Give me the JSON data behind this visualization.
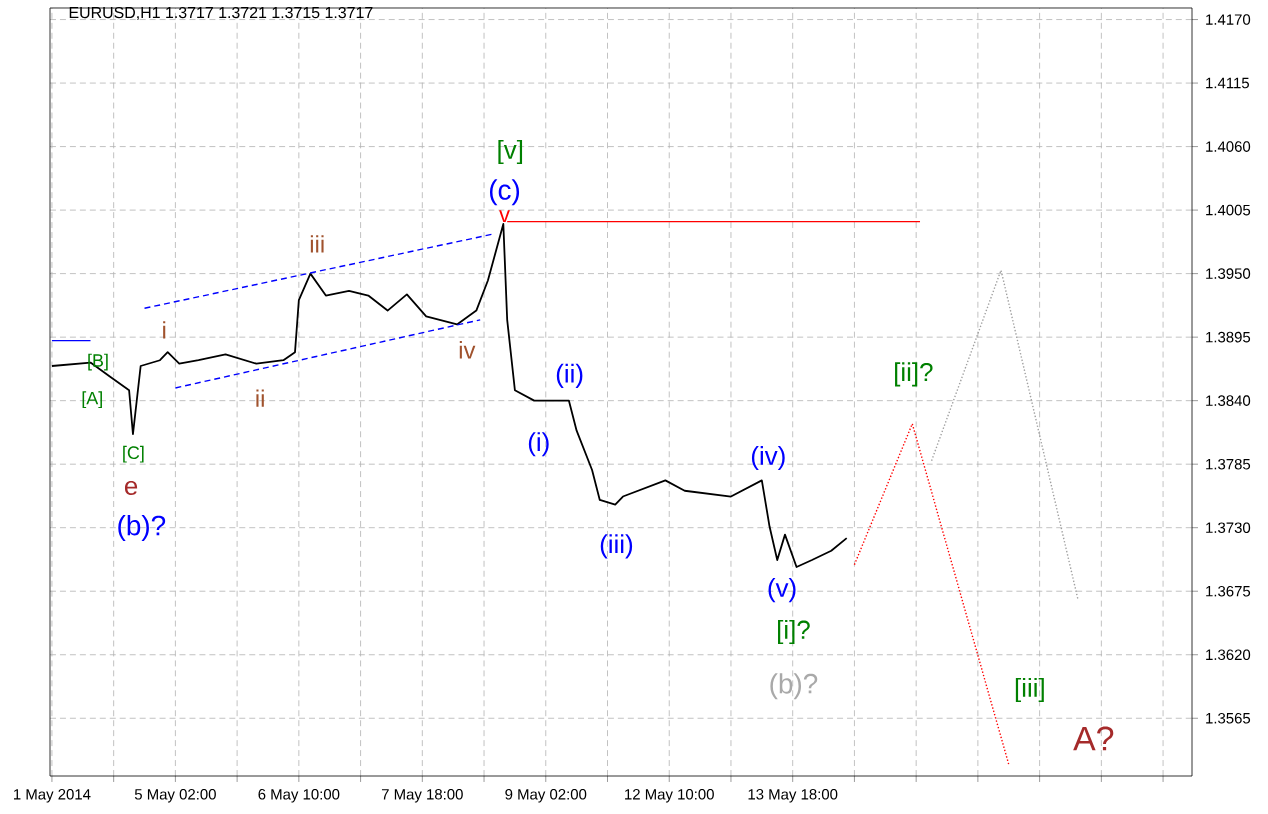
{
  "chart_data": {
    "type": "line",
    "title": "EURUSD,H1  1.3717 1.3721 1.3715 1.3717",
    "ylim": [
      1.3515,
      1.418
    ],
    "grid": true,
    "categories": [
      "1 May 2014",
      null,
      null,
      null,
      null,
      null,
      null,
      null,
      null,
      null,
      null,
      null,
      null,
      null,
      null,
      null,
      null,
      null,
      null,
      null,
      null,
      null,
      null,
      null,
      null,
      null,
      null,
      null,
      null,
      null,
      null,
      null,
      "5 May 02:00",
      null,
      null,
      null,
      null,
      null,
      null,
      null,
      null,
      null,
      null,
      null,
      null,
      null,
      null,
      null,
      null,
      null,
      null,
      null,
      null,
      null,
      null,
      null,
      null,
      null,
      null,
      null,
      null,
      null,
      null,
      null,
      "6 May 10:00",
      null,
      null,
      null,
      null,
      null,
      null,
      null,
      null,
      null,
      null,
      null,
      null,
      null,
      null,
      null,
      null,
      null,
      null,
      null,
      null,
      null,
      null,
      null,
      null,
      null,
      null,
      null,
      null,
      null,
      null,
      null,
      "7 May 18:00",
      null,
      null,
      null,
      null,
      null,
      null,
      null,
      null,
      null,
      null,
      null,
      null,
      null,
      null,
      null,
      null,
      null,
      null,
      null,
      null,
      null,
      null,
      null,
      null,
      null,
      null,
      null,
      null,
      null,
      null,
      null,
      "9 May 02:00",
      null,
      null,
      null,
      null,
      null,
      null,
      null,
      null,
      null,
      null,
      null,
      null,
      null,
      null,
      null,
      null,
      null,
      null,
      null,
      null,
      null,
      null,
      null,
      null,
      null,
      null,
      null,
      null,
      null,
      null,
      null,
      "12 May 10:00",
      null,
      null,
      null,
      null,
      null,
      null,
      null,
      null,
      null,
      null,
      null,
      null,
      null,
      null,
      null,
      null,
      null,
      null,
      null,
      null,
      null,
      null,
      null,
      null,
      null,
      null,
      null,
      null,
      null,
      null,
      null,
      "13 May 18:00",
      null,
      null,
      null,
      null,
      null,
      null,
      null,
      null,
      null,
      null,
      null,
      null,
      null,
      null,
      null,
      null,
      null,
      null,
      null,
      null,
      null,
      null,
      null,
      null,
      null,
      null,
      null,
      null,
      null,
      null,
      null,
      null,
      null,
      null,
      null,
      null,
      null,
      null,
      null,
      null,
      null,
      null,
      null,
      null,
      null,
      null,
      null,
      null,
      null,
      null,
      null,
      null,
      null,
      null,
      null,
      null,
      null,
      null,
      null,
      null,
      null,
      null,
      null,
      null,
      null,
      null,
      null,
      null,
      null,
      null,
      null,
      null,
      null,
      null,
      null,
      null,
      null,
      null,
      null,
      null,
      null,
      null,
      null,
      null,
      null,
      null,
      null,
      null,
      null,
      null,
      null,
      null,
      null,
      null,
      null,
      null,
      null,
      null,
      null,
      null,
      null,
      null,
      null
    ],
    "yticks": [
      {
        "value": 1.3565,
        "label": "1.3565"
      },
      {
        "value": 1.362,
        "label": "1.3620"
      },
      {
        "value": 1.3675,
        "label": "1.3675"
      },
      {
        "value": 1.373,
        "label": "1.3730"
      },
      {
        "value": 1.3785,
        "label": "1.3785"
      },
      {
        "value": 1.384,
        "label": "1.3840"
      },
      {
        "value": 1.3895,
        "label": "1.3895"
      },
      {
        "value": 1.395,
        "label": "1.3950"
      },
      {
        "value": 1.4005,
        "label": "1.4005"
      },
      {
        "value": 1.406,
        "label": "1.4060"
      },
      {
        "value": 1.4115,
        "label": "1.4115"
      },
      {
        "value": 1.417,
        "label": "1.4170"
      }
    ],
    "series": [
      {
        "color": "#000000",
        "line_style": "solid",
        "values": [
          1.387,
          null,
          null,
          null,
          null,
          null,
          null,
          null,
          null,
          null,
          1.3873,
          null,
          null,
          null,
          null,
          1.3861,
          null,
          null,
          null,
          null,
          1.3849,
          1.3811,
          null,
          1.387,
          null,
          null,
          null,
          null,
          1.3875,
          null,
          1.3882,
          null,
          null,
          1.3872,
          null,
          null,
          null,
          null,
          1.3875,
          null,
          null,
          null,
          null,
          null,
          null,
          1.388,
          null,
          null,
          null,
          null,
          null,
          null,
          null,
          1.3872,
          null,
          null,
          null,
          null,
          null,
          null,
          1.3875,
          null,
          null,
          1.3882,
          1.3927,
          null,
          null,
          1.395,
          null,
          null,
          null,
          1.3931,
          null,
          null,
          null,
          null,
          null,
          1.3935,
          null,
          null,
          null,
          null,
          1.3931,
          null,
          null,
          null,
          null,
          1.3918,
          null,
          null,
          null,
          null,
          1.3932,
          null,
          null,
          null,
          null,
          1.3913,
          null,
          null,
          null,
          null,
          null,
          null,
          null,
          1.3906,
          null,
          null,
          null,
          null,
          1.3918,
          null,
          null,
          1.3944,
          null,
          null,
          null,
          1.3993,
          1.391,
          null,
          1.3849,
          null,
          null,
          null,
          null,
          1.384,
          null,
          null,
          null,
          null,
          1.384,
          null,
          null,
          null,
          1.384,
          null,
          1.3814,
          null,
          null,
          null,
          1.378,
          null,
          1.3754,
          null,
          null,
          null,
          1.375,
          null,
          1.3757,
          null,
          null,
          null,
          null,
          null,
          null,
          null,
          null,
          null,
          null,
          1.3771,
          null,
          null,
          null,
          null,
          1.3762,
          null,
          null,
          null,
          null,
          null,
          null,
          null,
          null,
          null,
          null,
          null,
          1.3757,
          null,
          null,
          null,
          null,
          null,
          null,
          null,
          1.3771,
          null,
          1.3731,
          null,
          1.3702,
          null,
          1.3724,
          null,
          null,
          1.3696,
          null,
          null,
          null,
          1.3702,
          null,
          null,
          null,
          null,
          1.371,
          null,
          null,
          null,
          1.3721,
          null,
          null,
          null,
          null,
          null,
          null,
          null,
          null,
          null,
          null,
          null,
          null,
          null,
          null,
          null,
          null,
          null,
          null,
          null,
          null,
          null,
          null,
          null,
          null,
          null,
          null,
          null,
          null,
          null,
          null,
          null,
          null,
          null,
          null,
          null,
          null,
          null,
          null,
          null,
          null,
          null,
          null,
          null,
          null,
          null,
          null,
          null,
          null,
          null,
          null,
          null,
          null,
          null,
          null,
          null,
          null,
          null,
          null,
          null,
          null,
          null,
          null,
          null,
          null,
          null,
          null,
          null,
          null,
          null,
          null,
          null,
          null,
          null,
          null,
          null,
          null,
          null,
          null,
          null,
          null,
          null,
          null,
          null,
          null,
          null,
          null,
          null,
          null,
          null
        ]
      },
      {
        "color": "#0000ff",
        "line_style": "dashed",
        "values": [
          null,
          null,
          null,
          null,
          null,
          null,
          null,
          null,
          null,
          null,
          null,
          null,
          null,
          null,
          null,
          null,
          null,
          null,
          null,
          null,
          null,
          null,
          null,
          null,
          1.392,
          null,
          null,
          null,
          null,
          null,
          null,
          null,
          null,
          null,
          null,
          null,
          null,
          null,
          null,
          null,
          null,
          null,
          null,
          null,
          null,
          null,
          null,
          null,
          null,
          null,
          null,
          null,
          null,
          null,
          null,
          null,
          null,
          null,
          null,
          null,
          null,
          null,
          null,
          null,
          null,
          null,
          null,
          null,
          null,
          null,
          null,
          null,
          null,
          null,
          null,
          null,
          null,
          null,
          null,
          null,
          null,
          null,
          null,
          null,
          null,
          null,
          null,
          null,
          null,
          null,
          null,
          null,
          null,
          null,
          null,
          null,
          null,
          null,
          null,
          null,
          null,
          null,
          null,
          null,
          null,
          null,
          null,
          null,
          null,
          null,
          null,
          null,
          null,
          null,
          1.3984,
          null,
          null,
          null,
          null,
          null,
          null,
          null,
          null,
          null,
          null,
          null,
          null,
          null,
          null,
          null,
          null,
          null,
          null,
          null,
          null,
          null,
          null,
          null,
          null,
          null,
          null,
          null,
          null,
          null,
          null,
          null,
          null,
          null,
          null,
          null,
          null,
          null,
          null,
          null,
          null,
          null,
          null,
          null,
          null,
          null,
          null,
          null,
          null,
          null,
          null,
          null,
          null,
          null,
          null,
          null,
          null,
          null,
          null,
          null,
          null,
          null,
          null,
          null,
          null,
          null,
          null,
          null,
          null,
          null,
          null,
          null,
          null,
          null,
          null,
          null,
          null,
          null,
          null,
          null,
          null,
          null,
          null,
          null,
          null,
          null,
          null,
          null,
          null,
          null,
          null,
          null,
          null,
          null,
          null,
          null,
          null,
          null,
          null,
          null,
          null,
          null,
          null,
          null,
          null,
          null,
          null,
          null,
          null,
          null,
          null,
          null,
          null,
          null,
          null,
          null,
          null,
          null,
          null,
          null,
          null,
          null,
          null,
          null,
          null,
          null,
          null,
          null,
          null,
          null,
          null,
          null,
          null,
          null,
          null,
          null,
          null,
          null,
          null,
          null,
          null,
          null,
          null,
          null,
          null,
          null,
          null,
          null,
          null,
          null,
          null,
          null,
          null,
          null,
          null,
          null,
          null,
          null,
          null,
          null,
          null,
          null,
          null,
          null,
          null,
          null,
          null,
          null,
          null,
          null,
          null,
          null,
          null,
          null,
          null,
          null,
          null,
          null,
          null,
          null,
          null,
          null
        ]
      },
      {
        "color": "#0000ff",
        "line_style": "dashed",
        "values": [
          null,
          null,
          null,
          null,
          null,
          null,
          null,
          null,
          null,
          null,
          null,
          null,
          null,
          null,
          null,
          null,
          null,
          null,
          null,
          null,
          null,
          null,
          null,
          null,
          null,
          null,
          null,
          null,
          null,
          null,
          null,
          null,
          1.3851,
          null,
          null,
          null,
          null,
          null,
          null,
          null,
          null,
          null,
          null,
          null,
          null,
          null,
          null,
          null,
          null,
          null,
          null,
          null,
          null,
          null,
          null,
          null,
          null,
          null,
          null,
          null,
          null,
          null,
          null,
          null,
          null,
          null,
          null,
          null,
          null,
          null,
          null,
          null,
          null,
          null,
          null,
          null,
          null,
          null,
          null,
          null,
          null,
          null,
          null,
          null,
          null,
          null,
          null,
          null,
          null,
          null,
          null,
          null,
          null,
          null,
          null,
          null,
          null,
          null,
          null,
          null,
          null,
          null,
          null,
          null,
          null,
          null,
          null,
          null,
          null,
          null,
          null,
          1.391,
          null,
          null,
          null,
          null,
          null,
          null,
          null,
          null,
          null,
          null,
          null,
          null,
          null,
          null,
          null,
          null,
          null,
          null,
          null,
          null,
          null,
          null,
          null,
          null,
          null,
          null,
          null,
          null,
          null,
          null,
          null,
          null,
          null,
          null,
          null,
          null,
          null,
          null,
          null,
          null,
          null,
          null,
          null,
          null,
          null,
          null,
          null,
          null,
          null,
          null,
          null,
          null,
          null,
          null,
          null,
          null,
          null,
          null,
          null,
          null,
          null,
          null,
          null,
          null,
          null,
          null,
          null,
          null,
          null,
          null,
          null,
          null,
          null,
          null,
          null,
          null,
          null,
          null,
          null,
          null,
          null,
          null,
          null,
          null,
          null,
          null,
          null,
          null,
          null,
          null,
          null,
          null,
          null,
          null,
          null,
          null,
          null,
          null,
          null,
          null,
          null,
          null,
          null,
          null,
          null,
          null,
          null,
          null,
          null,
          null,
          null,
          null,
          null,
          null,
          null,
          null,
          null,
          null,
          null,
          null,
          null,
          null,
          null,
          null,
          null,
          null,
          null,
          null,
          null,
          null,
          null,
          null,
          null,
          null,
          null,
          null,
          null,
          null,
          null,
          null,
          null,
          null,
          null,
          null,
          null,
          null,
          null,
          null,
          null,
          null,
          null,
          null,
          null,
          null,
          null,
          null,
          null,
          null,
          null,
          null,
          null,
          null,
          null,
          null,
          null,
          null,
          null,
          null,
          null,
          null,
          null,
          null,
          null,
          null,
          null,
          null,
          null,
          null,
          null,
          null,
          null,
          null,
          null,
          null
        ]
      },
      {
        "color": "#0000ff",
        "line_style": "solid",
        "values": [
          1.3892,
          null,
          null,
          null,
          null,
          null,
          null,
          null,
          null,
          null,
          1.3892,
          null,
          null,
          null,
          null,
          null,
          null,
          null,
          null,
          null,
          null,
          null,
          null,
          null,
          null,
          null,
          null,
          null,
          null,
          null,
          null,
          null,
          null,
          null,
          null,
          null,
          null,
          null,
          null,
          null,
          null,
          null,
          null,
          null,
          null,
          null,
          null,
          null,
          null,
          null,
          null,
          null,
          null,
          null,
          null,
          null,
          null,
          null,
          null,
          null,
          null,
          null,
          null,
          null,
          null,
          null,
          null,
          null,
          null,
          null,
          null,
          null,
          null,
          null,
          null,
          null,
          null,
          null,
          null,
          null,
          null,
          null,
          null,
          null,
          null,
          null,
          null,
          null,
          null,
          null,
          null,
          null,
          null,
          null,
          null,
          null,
          null,
          null,
          null,
          null,
          null,
          null,
          null,
          null,
          null,
          null,
          null,
          null,
          null,
          null,
          null,
          null,
          null,
          null,
          null,
          null,
          null,
          null,
          null,
          null,
          null,
          null,
          null,
          null,
          null,
          null,
          null,
          null,
          null,
          null,
          null,
          null,
          null,
          null,
          null,
          null,
          null,
          null,
          null,
          null,
          null,
          null,
          null,
          null,
          null,
          null,
          null,
          null,
          null,
          null,
          null,
          null,
          null,
          null,
          null,
          null,
          null,
          null,
          null,
          null,
          null,
          null,
          null,
          null,
          null,
          null,
          null,
          null,
          null,
          null,
          null,
          null,
          null,
          null,
          null,
          null,
          null,
          null,
          null,
          null,
          null,
          null,
          null,
          null,
          null,
          null,
          null,
          null,
          null,
          null,
          null,
          null,
          null,
          null,
          null,
          null,
          null,
          null,
          null,
          null,
          null,
          null,
          null,
          null,
          null,
          null,
          null,
          null,
          null,
          null,
          null,
          null,
          null,
          null,
          null,
          null,
          null,
          null,
          null,
          null,
          null,
          null,
          null,
          null,
          null,
          null,
          null,
          null,
          null,
          null,
          null,
          null,
          null,
          null,
          null,
          null,
          null,
          null,
          null,
          null,
          null,
          null,
          null,
          null,
          null,
          null,
          null,
          null,
          null,
          null,
          null,
          null,
          null,
          null,
          null,
          null,
          null,
          null,
          null,
          null,
          null,
          null,
          null,
          null,
          null,
          null,
          null,
          null,
          null,
          null,
          null,
          null,
          null,
          null,
          null,
          null,
          null,
          null,
          null,
          null,
          null,
          null,
          null,
          null,
          null,
          null,
          null,
          null,
          null,
          null,
          null,
          null,
          null,
          null,
          null,
          null
        ]
      },
      {
        "color": "#ff0000",
        "line_style": "solid",
        "values": [
          null,
          null,
          null,
          null,
          null,
          null,
          null,
          null,
          null,
          null,
          null,
          null,
          null,
          null,
          null,
          null,
          null,
          null,
          null,
          null,
          null,
          null,
          null,
          null,
          null,
          null,
          null,
          null,
          null,
          null,
          null,
          null,
          null,
          null,
          null,
          null,
          null,
          null,
          null,
          null,
          null,
          null,
          null,
          null,
          null,
          null,
          null,
          null,
          null,
          null,
          null,
          null,
          null,
          null,
          null,
          null,
          null,
          null,
          null,
          null,
          null,
          null,
          null,
          null,
          null,
          null,
          null,
          null,
          null,
          null,
          null,
          null,
          null,
          null,
          null,
          null,
          null,
          null,
          null,
          null,
          null,
          null,
          null,
          null,
          null,
          null,
          null,
          null,
          null,
          null,
          null,
          null,
          null,
          null,
          null,
          null,
          null,
          null,
          null,
          null,
          null,
          null,
          null,
          null,
          null,
          null,
          null,
          null,
          null,
          null,
          null,
          null,
          null,
          null,
          null,
          null,
          null,
          null,
          1.3995,
          null,
          null,
          null,
          null,
          null,
          null,
          null,
          null,
          null,
          null,
          null,
          null,
          null,
          null,
          null,
          null,
          null,
          null,
          null,
          null,
          null,
          null,
          null,
          null,
          null,
          null,
          null,
          null,
          null,
          null,
          null,
          null,
          null,
          null,
          null,
          null,
          null,
          null,
          null,
          null,
          null,
          null,
          null,
          null,
          null,
          null,
          null,
          null,
          null,
          null,
          null,
          null,
          null,
          null,
          null,
          null,
          null,
          null,
          null,
          null,
          null,
          null,
          null,
          null,
          null,
          null,
          null,
          null,
          null,
          null,
          null,
          null,
          null,
          null,
          null,
          null,
          null,
          null,
          null,
          null,
          null,
          null,
          null,
          null,
          null,
          null,
          null,
          null,
          null,
          null,
          null,
          null,
          null,
          null,
          null,
          null,
          null,
          null,
          null,
          null,
          null,
          null,
          null,
          null,
          null,
          null,
          1.3995,
          null,
          null,
          null,
          null,
          null,
          null,
          null,
          null,
          null,
          null,
          null,
          null,
          null,
          null,
          null,
          null,
          null,
          null,
          null,
          null,
          null,
          null,
          null,
          null,
          null,
          null,
          null,
          null,
          null,
          null,
          null,
          null,
          null,
          null,
          null,
          null,
          null,
          null,
          null,
          null,
          null,
          null,
          null,
          null,
          null,
          null,
          null,
          null,
          null,
          null,
          null,
          null,
          null,
          null,
          null,
          null,
          null,
          null,
          null,
          null,
          null,
          null,
          null,
          null,
          null,
          null,
          null,
          null,
          null,
          null
        ]
      },
      {
        "color": "#ff0000",
        "line_style": "dotted",
        "values": [
          null,
          null,
          null,
          null,
          null,
          null,
          null,
          null,
          null,
          null,
          null,
          null,
          null,
          null,
          null,
          null,
          null,
          null,
          null,
          null,
          null,
          null,
          null,
          null,
          null,
          null,
          null,
          null,
          null,
          null,
          null,
          null,
          null,
          null,
          null,
          null,
          null,
          null,
          null,
          null,
          null,
          null,
          null,
          null,
          null,
          null,
          null,
          null,
          null,
          null,
          null,
          null,
          null,
          null,
          null,
          null,
          null,
          null,
          null,
          null,
          null,
          null,
          null,
          null,
          null,
          null,
          null,
          null,
          null,
          null,
          null,
          null,
          null,
          null,
          null,
          null,
          null,
          null,
          null,
          null,
          null,
          null,
          null,
          null,
          null,
          null,
          null,
          null,
          null,
          null,
          null,
          null,
          null,
          null,
          null,
          null,
          null,
          null,
          null,
          null,
          null,
          null,
          null,
          null,
          null,
          null,
          null,
          null,
          null,
          null,
          null,
          null,
          null,
          null,
          null,
          null,
          null,
          null,
          null,
          null,
          null,
          null,
          null,
          null,
          null,
          null,
          null,
          null,
          null,
          null,
          null,
          null,
          null,
          null,
          null,
          null,
          null,
          null,
          null,
          null,
          null,
          null,
          null,
          null,
          null,
          null,
          null,
          null,
          null,
          null,
          null,
          null,
          null,
          null,
          null,
          null,
          null,
          null,
          null,
          null,
          null,
          null,
          null,
          null,
          null,
          null,
          null,
          null,
          null,
          null,
          null,
          null,
          null,
          null,
          null,
          null,
          null,
          null,
          null,
          null,
          null,
          null,
          null,
          null,
          null,
          null,
          null,
          null,
          null,
          null,
          null,
          null,
          null,
          null,
          null,
          null,
          null,
          null,
          null,
          null,
          null,
          null,
          null,
          null,
          null,
          null,
          null,
          null,
          1.3698,
          null,
          null,
          null,
          null,
          null,
          null,
          null,
          null,
          null,
          null,
          null,
          null,
          null,
          null,
          1.382,
          null,
          null,
          null,
          null,
          null,
          null,
          null,
          null,
          null,
          null,
          null,
          null,
          null,
          null,
          null,
          null,
          null,
          null,
          null,
          null,
          null,
          null,
          null,
          null,
          1.3525,
          null,
          null,
          null,
          null,
          null,
          null,
          null,
          null,
          null,
          null,
          null,
          null,
          null,
          null,
          null,
          null,
          null,
          null,
          null,
          null,
          null,
          null,
          null,
          null,
          null,
          null,
          null,
          null,
          null,
          null,
          null,
          null,
          null,
          null,
          null,
          null,
          null,
          null,
          null,
          null,
          null,
          null,
          null,
          null,
          null,
          null,
          null
        ]
      },
      {
        "color": "#a0a0a0",
        "line_style": "dotted",
        "values": [
          null,
          null,
          null,
          null,
          null,
          null,
          null,
          null,
          null,
          null,
          null,
          null,
          null,
          null,
          null,
          null,
          null,
          null,
          null,
          null,
          null,
          null,
          null,
          null,
          null,
          null,
          null,
          null,
          null,
          null,
          null,
          null,
          null,
          null,
          null,
          null,
          null,
          null,
          null,
          null,
          null,
          null,
          null,
          null,
          null,
          null,
          null,
          null,
          null,
          null,
          null,
          null,
          null,
          null,
          null,
          null,
          null,
          null,
          null,
          null,
          null,
          null,
          null,
          null,
          null,
          null,
          null,
          null,
          null,
          null,
          null,
          null,
          null,
          null,
          null,
          null,
          null,
          null,
          null,
          null,
          null,
          null,
          null,
          null,
          null,
          null,
          null,
          null,
          null,
          null,
          null,
          null,
          null,
          null,
          null,
          null,
          null,
          null,
          null,
          null,
          null,
          null,
          null,
          null,
          null,
          null,
          null,
          null,
          null,
          null,
          null,
          null,
          null,
          null,
          null,
          null,
          null,
          null,
          null,
          null,
          null,
          null,
          null,
          null,
          null,
          null,
          null,
          null,
          null,
          null,
          null,
          null,
          null,
          null,
          null,
          null,
          null,
          null,
          null,
          null,
          null,
          null,
          null,
          null,
          null,
          null,
          null,
          null,
          null,
          null,
          null,
          null,
          null,
          null,
          null,
          null,
          null,
          null,
          null,
          null,
          null,
          null,
          null,
          null,
          null,
          null,
          null,
          null,
          null,
          null,
          null,
          null,
          null,
          null,
          null,
          null,
          null,
          null,
          null,
          null,
          null,
          null,
          null,
          null,
          null,
          null,
          null,
          null,
          null,
          null,
          null,
          null,
          null,
          null,
          null,
          null,
          null,
          null,
          null,
          null,
          null,
          null,
          null,
          null,
          null,
          null,
          null,
          null,
          null,
          null,
          null,
          null,
          null,
          null,
          null,
          null,
          null,
          null,
          null,
          null,
          null,
          null,
          null,
          null,
          null,
          null,
          null,
          null,
          1.3788,
          null,
          null,
          null,
          null,
          null,
          null,
          null,
          null,
          null,
          null,
          null,
          null,
          null,
          null,
          null,
          null,
          null,
          1.3953,
          null,
          null,
          null,
          null,
          null,
          null,
          null,
          null,
          null,
          null,
          null,
          null,
          null,
          null,
          null,
          null,
          null,
          null,
          null,
          1.3667,
          null,
          null,
          null,
          null,
          null,
          null,
          null,
          null,
          null,
          null,
          null,
          null,
          null,
          null,
          null,
          null,
          null,
          null,
          null,
          null,
          null,
          null,
          null,
          null,
          null,
          null,
          null,
          null,
          null
        ]
      }
    ],
    "annotations": [
      "[A]",
      "[B]",
      "[C]",
      "e",
      "(b)?",
      "i",
      "ii",
      "iii",
      "iv",
      "[v]",
      "(c)",
      "v",
      "(i)",
      "(ii)",
      "(iii)",
      "(iv)",
      "(v)",
      "[i]?",
      "(b)?",
      "[ii]?",
      "[iii]",
      "A?"
    ]
  }
}
